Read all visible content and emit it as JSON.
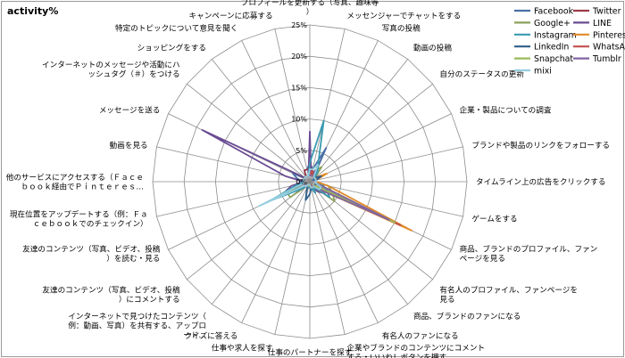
{
  "chart_data": {
    "type": "radar",
    "title": "activity%",
    "rmax": 25,
    "rticks": [
      0,
      5,
      10,
      15,
      20,
      25
    ],
    "rtick_labels": [
      "0%",
      "5%",
      "10%",
      "15%",
      "20%",
      "25%"
    ],
    "grid": true,
    "legend_position": "top-right",
    "categories": [
      "プロフィールを更新する（写真、趣味等）",
      "メッセンジャーでチャットをする",
      "写真の投稿",
      "動画の投稿",
      "自分のステータスの更新",
      "企業・製品についての調査",
      "ブランドや製品のリンクをフォローする",
      "タイムライン上の広告をクリックする",
      "ゲームをする",
      "商品、ブランドのプロファイル、ファンページを見る",
      "有名人のプロファイル、ファンページを見る",
      "商品、ブランドのファンになる",
      "有名人のファンになる",
      "企業やブランドのコンテンツにコメントする・いいね！ボタンを押す",
      "仕事のパートナーを探す",
      "仕事や求人を探す",
      "クイズに答える",
      "インターネットで見つけたコンテンツ（例：動画、写真）を共有する、アップロード…",
      "友達のコンテンツ（写真、ビデオ、投稿）にコメントする",
      "友達のコンテンツ（写真、ビデオ、投稿）を読む・見る",
      "現在位置をアップデートする（例：Ｆａｃｅｂｏｏｋでのチェックイン）",
      "他のサービスにアクセスする（Ｆａｃｅｂｏｏｋ経由でＰｉｎｔｅｒｅｓ…",
      "動画を見る",
      "メッセージを送る",
      "インターネットのメッセージや活動にハッシュタグ（＃）をつける",
      "ショッピングをする",
      "特定のトピックについて意見を聞く",
      "キャンペーンに応募する"
    ],
    "series": [
      {
        "name": "Facebook",
        "color": "#4a6fa5",
        "values": [
          3,
          2,
          6,
          1,
          1,
          0.5,
          1,
          1,
          2,
          3,
          4,
          1,
          1,
          1,
          0.5,
          0.5,
          0.5,
          1,
          2,
          3,
          1,
          1,
          2,
          3,
          1,
          1,
          2,
          2
        ]
      },
      {
        "name": "Twitter",
        "color": "#9c3a44",
        "values": [
          2,
          2,
          1,
          1,
          1,
          1,
          1,
          1,
          1,
          1,
          1,
          1,
          1,
          0.5,
          0.5,
          0.5,
          0.5,
          1,
          1,
          1,
          1,
          1,
          1,
          1,
          1,
          1,
          2,
          2
        ]
      },
      {
        "name": "Google+",
        "color": "#8ba05a",
        "values": [
          1,
          1,
          2,
          3,
          1,
          1,
          1,
          1,
          3,
          4,
          5,
          1,
          2,
          1,
          0.5,
          1,
          1,
          1,
          4,
          4,
          1,
          1,
          1,
          1,
          1,
          1,
          1,
          1
        ]
      },
      {
        "name": "LINE",
        "color": "#6a4c93",
        "values": [
          8,
          1,
          2,
          1,
          1,
          1,
          1,
          1,
          1,
          2,
          3,
          2,
          1,
          1,
          0.5,
          0.5,
          0.5,
          1,
          2,
          5,
          3,
          1,
          4,
          19,
          1,
          1,
          1,
          1
        ]
      },
      {
        "name": "Instagram",
        "color": "#3a9ab0",
        "values": [
          3,
          10,
          3,
          2,
          1,
          1,
          1,
          1,
          2,
          3,
          4,
          1,
          2,
          1,
          1,
          1,
          1,
          1,
          2,
          7,
          2,
          1,
          1,
          1,
          1,
          1,
          1,
          1
        ]
      },
      {
        "name": "Pinterest",
        "color": "#e08a2a",
        "values": [
          1,
          1,
          1,
          1,
          1,
          3,
          1,
          1,
          3,
          18,
          2,
          1,
          1,
          1,
          0.5,
          0.5,
          0.5,
          1,
          1,
          1,
          1,
          1,
          1,
          1,
          1,
          1,
          1,
          1
        ]
      },
      {
        "name": "LinkedIn",
        "color": "#2f5e8a",
        "values": [
          1,
          1,
          1,
          1,
          1,
          2,
          1,
          1,
          1,
          1,
          1,
          1,
          1,
          1,
          2,
          3,
          1,
          1,
          1,
          1,
          1,
          1,
          1,
          1,
          1,
          1,
          1,
          1
        ]
      },
      {
        "name": "WhatsApp",
        "color": "#c0504d",
        "values": [
          1,
          2,
          1,
          1,
          1,
          1,
          1,
          1,
          1,
          16,
          1,
          1,
          1,
          1,
          0.5,
          0.5,
          0.5,
          1,
          1,
          1,
          1,
          1,
          1,
          1,
          1,
          1,
          1,
          1
        ]
      },
      {
        "name": "Snapchat",
        "color": "#9bbb59",
        "values": [
          1,
          1,
          1,
          1,
          1,
          1,
          1,
          1,
          1,
          15,
          1,
          1,
          1,
          1,
          0.5,
          0.5,
          0.5,
          1,
          1,
          1,
          1,
          1,
          1,
          1,
          1,
          1,
          1,
          1
        ]
      },
      {
        "name": "Tumblr",
        "color": "#8064a2",
        "values": [
          1,
          1,
          1,
          1,
          1,
          1,
          1,
          1,
          1,
          14,
          2,
          1,
          1,
          1,
          0.5,
          0.5,
          0.5,
          1,
          1,
          1,
          1,
          1,
          1,
          1,
          1,
          1,
          1,
          1
        ]
      },
      {
        "name": "mixi",
        "color": "#93cddd",
        "values": [
          2,
          2,
          3,
          1,
          1,
          1,
          1,
          1,
          1,
          2,
          2,
          1,
          1,
          1,
          0.5,
          0.5,
          0.5,
          1,
          1,
          9,
          1,
          1,
          1,
          1,
          1,
          1,
          1,
          1
        ]
      }
    ]
  }
}
